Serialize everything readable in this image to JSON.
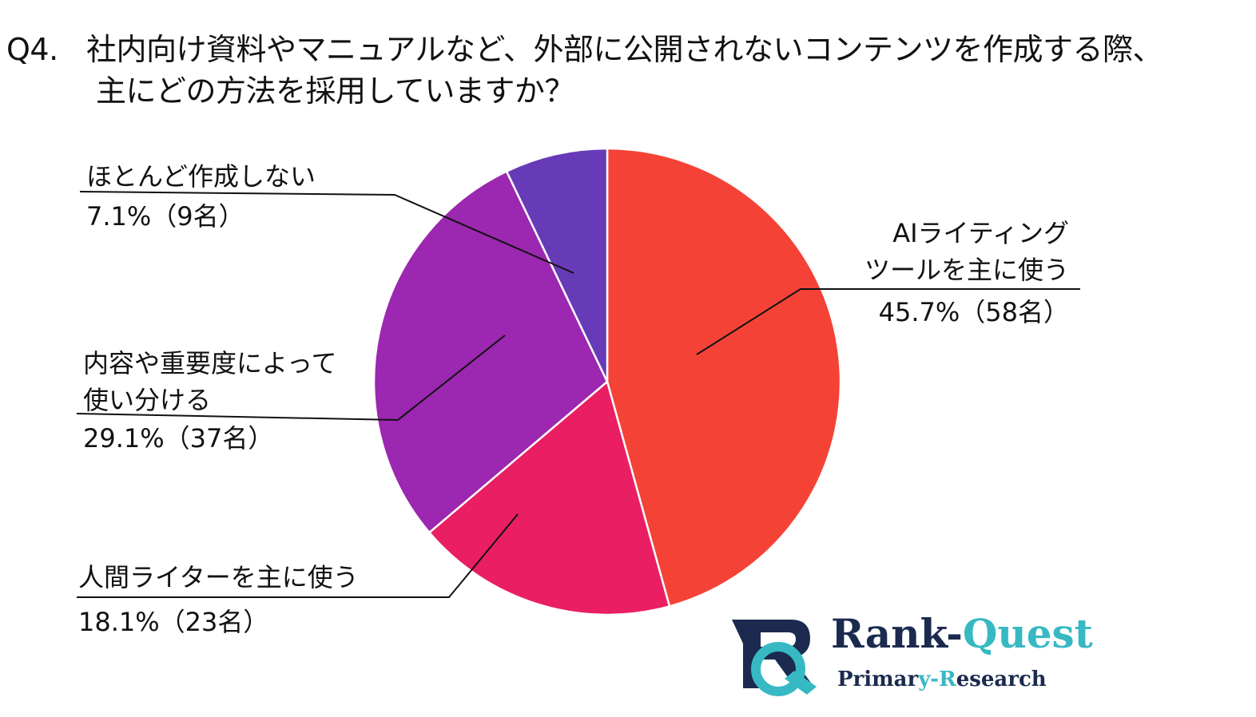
{
  "title": {
    "number": "Q4.",
    "line1": "社内向け資料やマニュアルなど、外部に公開されないコンテンツを作成する際、",
    "line2": "主にどの方法を採用していますか？"
  },
  "chart_data": {
    "type": "pie",
    "title": "Q4. 社内向け資料やマニュアルなど、外部に公開されないコンテンツを作成する際、主にどの方法を採用していますか？",
    "slices": [
      {
        "label_lines": [
          "AIライティング",
          "ツールを主に使う"
        ],
        "value": 45.7,
        "count": 58,
        "value_text": "45.7%（58名）",
        "color": "#f44336"
      },
      {
        "label_lines": [
          "人間ライターを主に使う"
        ],
        "value": 18.1,
        "count": 23,
        "value_text": "18.1%（23名）",
        "color": "#e91e63"
      },
      {
        "label_lines": [
          "内容や重要度によって",
          "使い分ける"
        ],
        "value": 29.1,
        "count": 37,
        "value_text": "29.1%（37名）",
        "color": "#9c27b0"
      },
      {
        "label_lines": [
          "ほとんど作成しない"
        ],
        "value": 7.1,
        "count": 9,
        "value_text": "7.1%（9名）",
        "color": "#673ab7"
      }
    ],
    "start_angle": "12 o'clock",
    "direction": "clockwise",
    "legend": "none"
  },
  "logo": {
    "brand_part1": "Rank-",
    "brand_part2": "Quest",
    "tagline_part1": "Primar",
    "tagline_part2": "y-R",
    "tagline_part3": "esearch",
    "colors": {
      "navy": "#1b2a4e",
      "teal": "#37b9c3"
    }
  }
}
